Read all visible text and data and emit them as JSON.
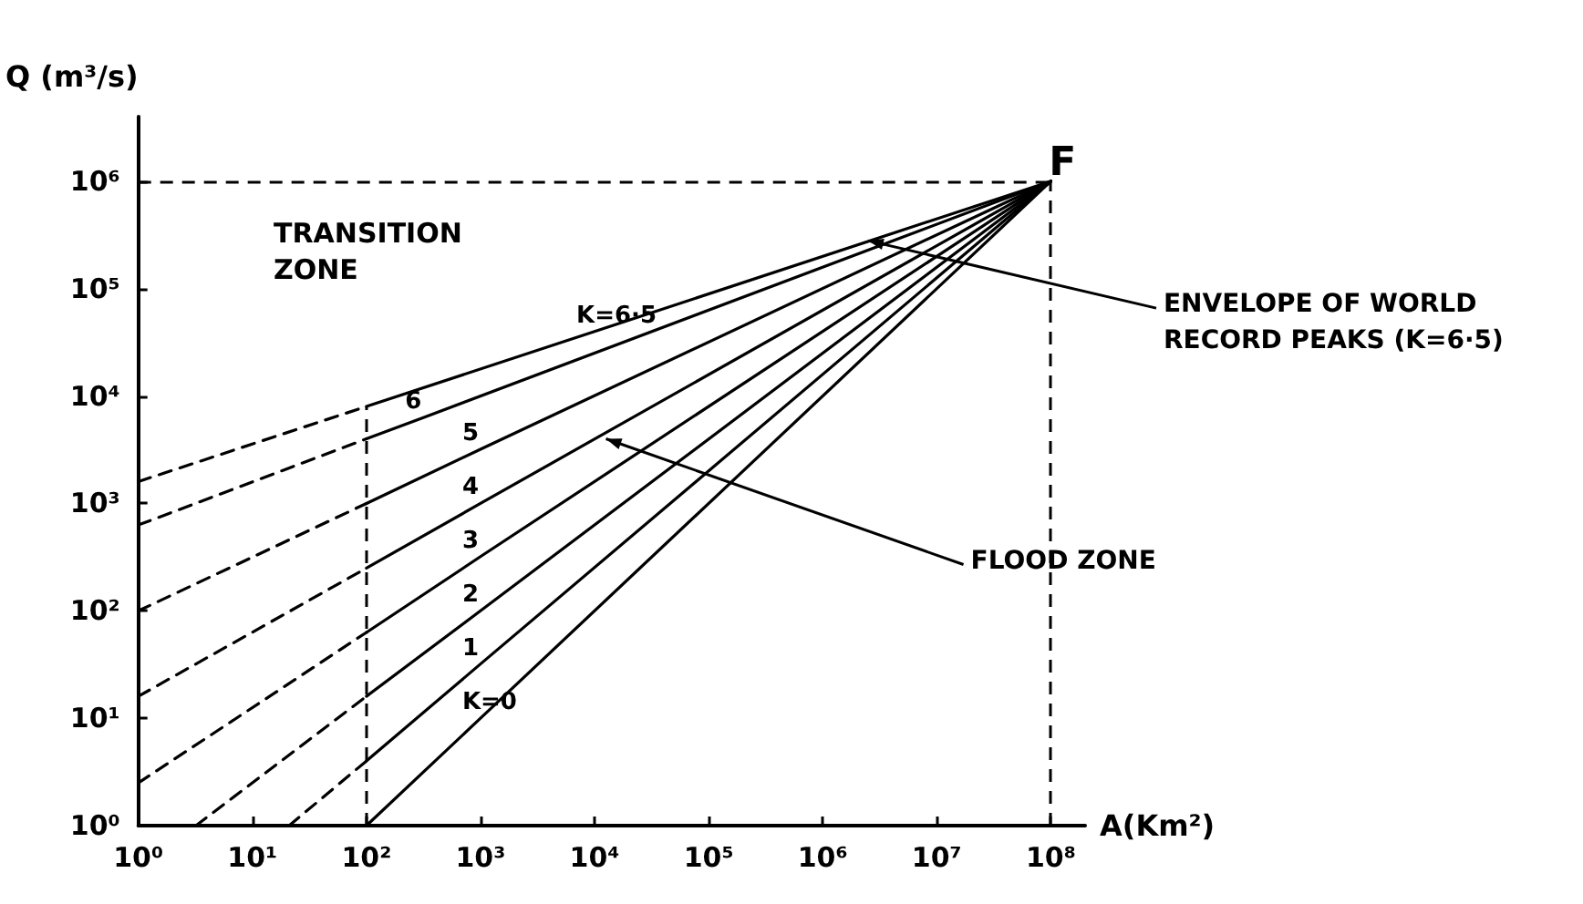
{
  "chart_data": {
    "type": "line",
    "xlabel": "A(Km²)",
    "ylabel": "Q (m³/s)",
    "log": "xy",
    "grid": false,
    "legend": false,
    "marker": "none",
    "xlim": [
      1,
      200000000
    ],
    "ylim": [
      1,
      4000000
    ],
    "xticks": [
      {
        "value": 1,
        "label": "10⁰"
      },
      {
        "value": 10,
        "label": "10¹"
      },
      {
        "value": 100,
        "label": "10²"
      },
      {
        "value": 1000,
        "label": "10³"
      },
      {
        "value": 10000,
        "label": "10⁴"
      },
      {
        "value": 100000,
        "label": "10⁵"
      },
      {
        "value": 1000000,
        "label": "10⁶"
      },
      {
        "value": 10000000,
        "label": "10⁷"
      },
      {
        "value": 100000000,
        "label": "10⁸"
      }
    ],
    "yticks": [
      {
        "value": 1,
        "label": "10⁰"
      },
      {
        "value": 10,
        "label": "10¹"
      },
      {
        "value": 100,
        "label": "10²"
      },
      {
        "value": 1000,
        "label": "10³"
      },
      {
        "value": 10000,
        "label": "10⁴"
      },
      {
        "value": 100000,
        "label": "10⁵"
      },
      {
        "value": 1000000,
        "label": "10⁶"
      }
    ],
    "series": [
      {
        "name": "K=6·5",
        "color": "#000000",
        "line_style": "solid",
        "x": [
          100,
          10000,
          100000000
        ],
        "values": [
          8000,
          40000,
          1000000
        ]
      },
      {
        "name": "6",
        "color": "#000000",
        "line_style": "solid",
        "x": [
          100,
          316,
          100000000
        ],
        "values": [
          4000,
          6300,
          1000000
        ]
      },
      {
        "name": "5",
        "color": "#000000",
        "line_style": "solid",
        "x": [
          100,
          1000,
          100000000
        ],
        "values": [
          1000,
          3200,
          1000000
        ]
      },
      {
        "name": "4",
        "color": "#000000",
        "line_style": "solid",
        "x": [
          100,
          1000,
          100000000
        ],
        "values": [
          250,
          1000,
          1000000
        ]
      },
      {
        "name": "3",
        "color": "#000000",
        "line_style": "solid",
        "x": [
          100,
          1000,
          100000000
        ],
        "values": [
          63,
          320,
          1000000
        ]
      },
      {
        "name": "2",
        "color": "#000000",
        "line_style": "solid",
        "x": [
          100,
          1000,
          100000000
        ],
        "values": [
          16,
          100,
          1000000
        ]
      },
      {
        "name": "1",
        "color": "#000000",
        "line_style": "solid",
        "x": [
          100,
          1000,
          100000000
        ],
        "values": [
          4,
          32,
          1000000
        ]
      },
      {
        "name": "K=0",
        "color": "#000000",
        "line_style": "solid",
        "x": [
          100,
          1000,
          100000000
        ],
        "values": [
          1,
          10,
          1000000
        ]
      },
      {
        "color": "#000000",
        "line_style": "dashed",
        "x": [
          1,
          100
        ],
        "values": [
          1600,
          8000
        ]
      },
      {
        "color": "#000000",
        "line_style": "dashed",
        "x": [
          1,
          100
        ],
        "values": [
          630,
          4000
        ]
      },
      {
        "color": "#000000",
        "line_style": "dashed",
        "x": [
          1,
          100
        ],
        "values": [
          100,
          1000
        ]
      },
      {
        "color": "#000000",
        "line_style": "dashed",
        "x": [
          1,
          100
        ],
        "values": [
          16,
          250
        ]
      },
      {
        "color": "#000000",
        "line_style": "dashed",
        "x": [
          1,
          100
        ],
        "values": [
          2.5,
          63
        ]
      },
      {
        "color": "#000000",
        "line_style": "dashed",
        "x": [
          3.2,
          100
        ],
        "values": [
          1,
          16
        ]
      },
      {
        "color": "#000000",
        "line_style": "dashed",
        "x": [
          21,
          100
        ],
        "values": [
          1,
          4
        ]
      }
    ],
    "ref_lines": [
      {
        "axis": "x",
        "value": 100,
        "line_style": "dashed",
        "color": "#000000"
      },
      {
        "axis": "x",
        "value": 100000000,
        "line_style": "dashed",
        "color": "#000000"
      },
      {
        "axis": "y",
        "value": 1000000,
        "line_style": "dashed",
        "color": "#000000"
      }
    ],
    "annotations": [
      "TRANSITION ZONE",
      {
        "text": "FLOOD ZONE",
        "x": 12600,
        "y": 4000
      },
      {
        "text": "ENVELOPE OF WORLD RECORD PEAKS (K=6·5)",
        "x": 2500000,
        "y": 280000
      },
      {
        "text": "F",
        "x": 100000000,
        "y": 1000000
      }
    ]
  }
}
